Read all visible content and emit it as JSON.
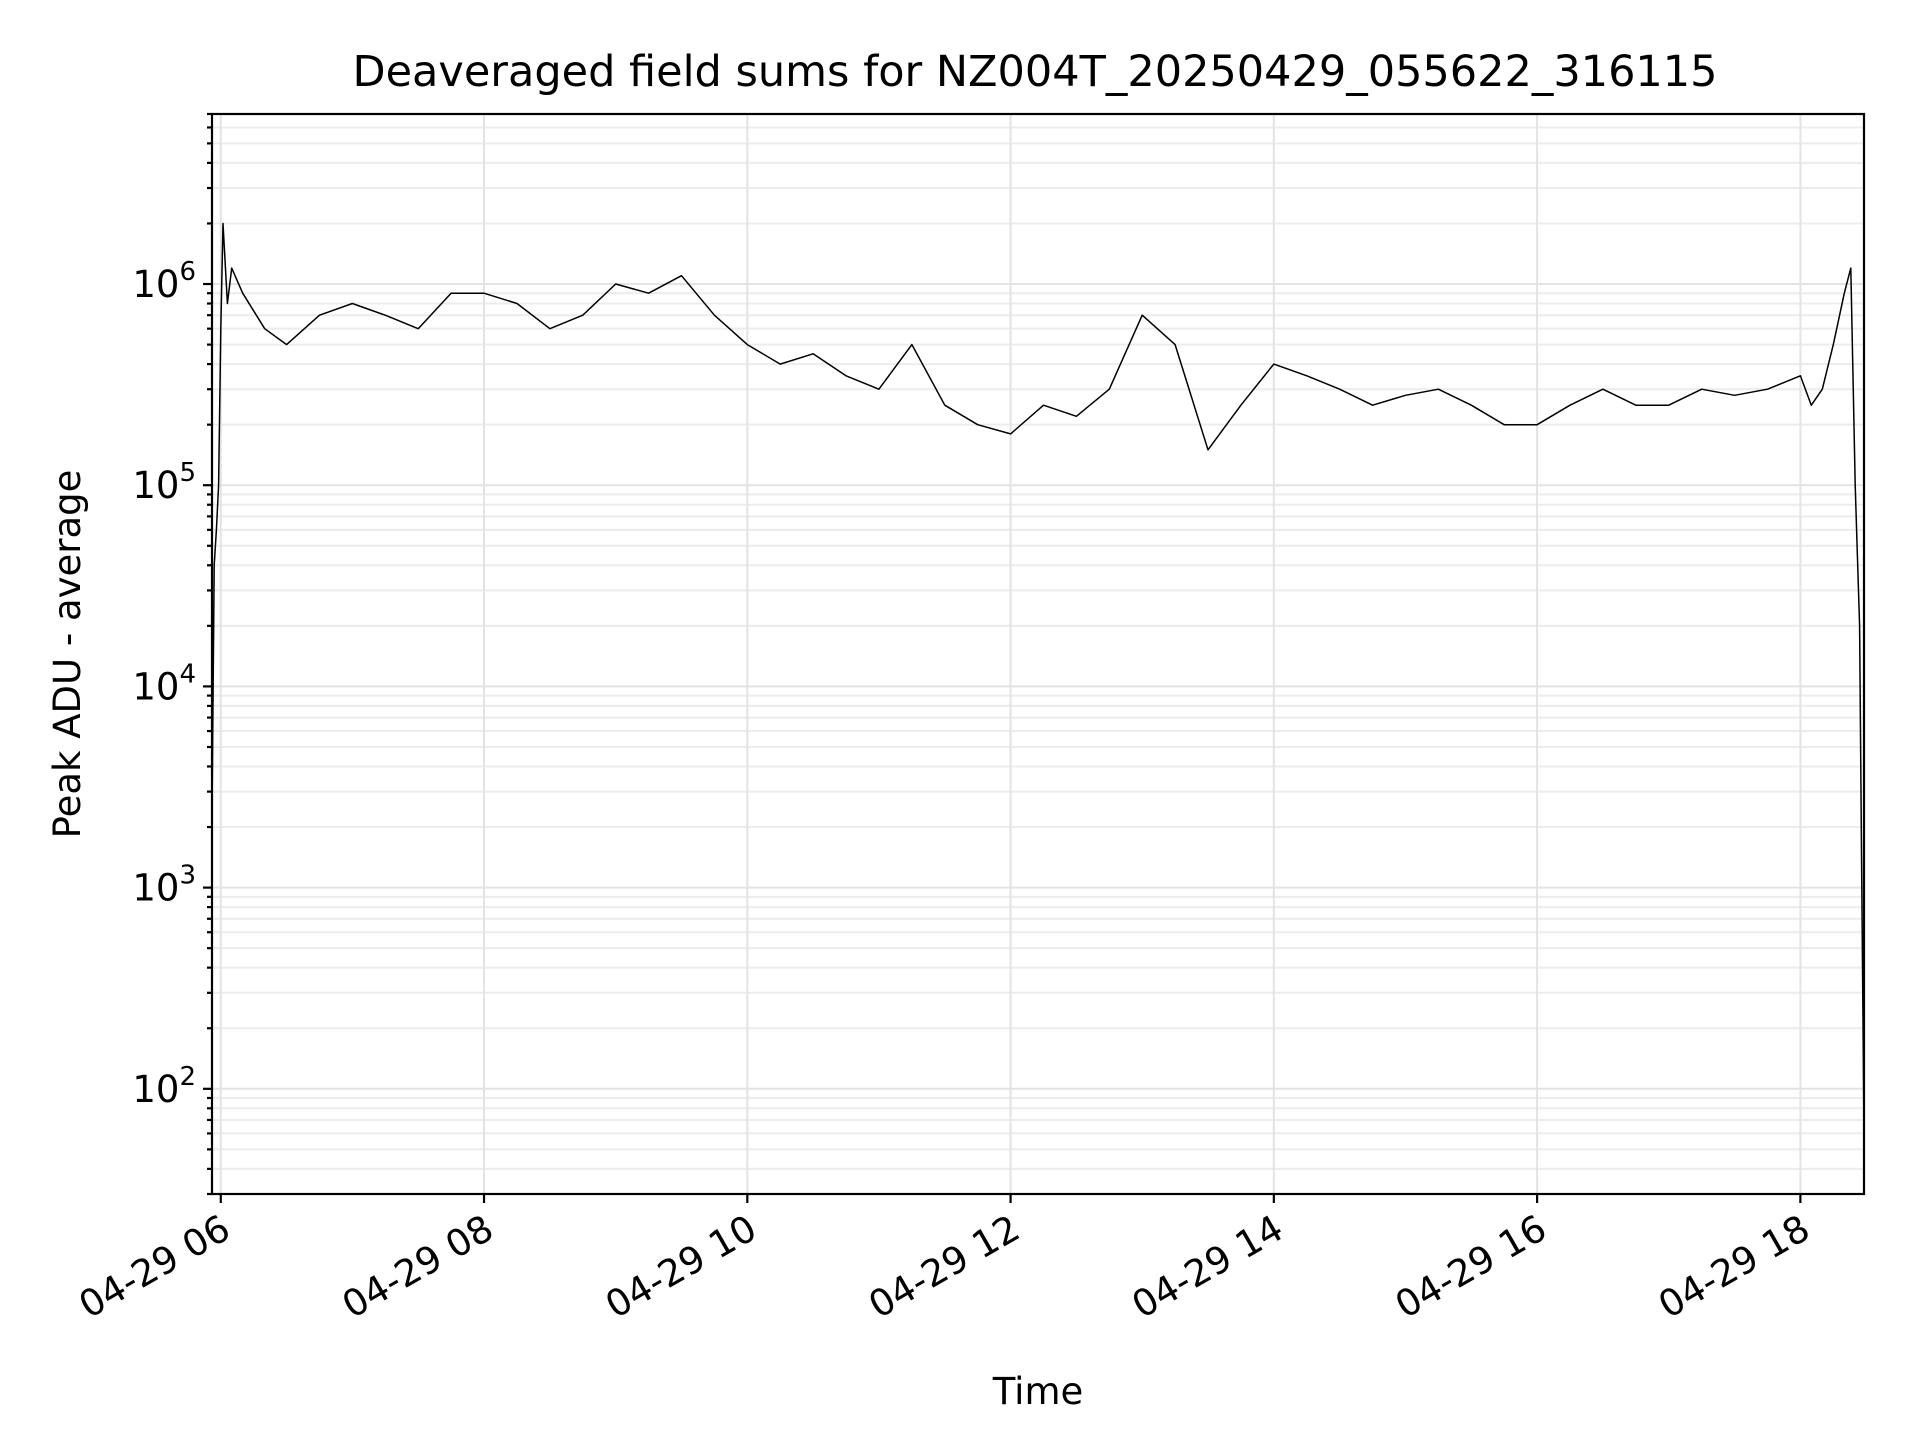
{
  "chart_data": {
    "type": "line",
    "title": "Deaveraged field sums for NZ004T_20250429_055622_316115",
    "xlabel": "Time",
    "ylabel": "Peak ADU - average",
    "yscale": "log",
    "ylim": [
      30,
      7000000
    ],
    "xlim": [
      "04-29 05:56",
      "04-29 18:29"
    ],
    "grid": true,
    "x_ticks": [
      {
        "value": "04-29 06:00",
        "label": "04-29 06"
      },
      {
        "value": "04-29 08:00",
        "label": "04-29 08"
      },
      {
        "value": "04-29 10:00",
        "label": "04-29 10"
      },
      {
        "value": "04-29 12:00",
        "label": "04-29 12"
      },
      {
        "value": "04-29 14:00",
        "label": "04-29 14"
      },
      {
        "value": "04-29 16:00",
        "label": "04-29 16"
      },
      {
        "value": "04-29 18:00",
        "label": "04-29 18"
      }
    ],
    "y_ticks": [
      {
        "value": 100,
        "base": "10",
        "exp": "2"
      },
      {
        "value": 1000,
        "base": "10",
        "exp": "3"
      },
      {
        "value": 10000,
        "base": "10",
        "exp": "4"
      },
      {
        "value": 100000,
        "base": "10",
        "exp": "5"
      },
      {
        "value": 1000000,
        "base": "10",
        "exp": "6"
      }
    ],
    "series": [
      {
        "color": "#000000",
        "x": [
          "04-29 05:56",
          "04-29 05:57",
          "04-29 05:58",
          "04-29 05:59",
          "04-29 06:00",
          "04-29 06:01",
          "04-29 06:03",
          "04-29 06:05",
          "04-29 06:10",
          "04-29 06:20",
          "04-29 06:30",
          "04-29 06:45",
          "04-29 07:00",
          "04-29 07:15",
          "04-29 07:30",
          "04-29 07:45",
          "04-29 08:00",
          "04-29 08:15",
          "04-29 08:30",
          "04-29 08:45",
          "04-29 09:00",
          "04-29 09:15",
          "04-29 09:30",
          "04-29 09:45",
          "04-29 10:00",
          "04-29 10:15",
          "04-29 10:30",
          "04-29 10:45",
          "04-29 11:00",
          "04-29 11:15",
          "04-29 11:30",
          "04-29 11:45",
          "04-29 12:00",
          "04-29 12:15",
          "04-29 12:30",
          "04-29 12:45",
          "04-29 13:00",
          "04-29 13:15",
          "04-29 13:30",
          "04-29 13:45",
          "04-29 14:00",
          "04-29 14:15",
          "04-29 14:30",
          "04-29 14:45",
          "04-29 15:00",
          "04-29 15:15",
          "04-29 15:30",
          "04-29 15:45",
          "04-29 16:00",
          "04-29 16:15",
          "04-29 16:30",
          "04-29 16:45",
          "04-29 17:00",
          "04-29 17:15",
          "04-29 17:30",
          "04-29 17:45",
          "04-29 18:00",
          "04-29 18:05",
          "04-29 18:10",
          "04-29 18:15",
          "04-29 18:20",
          "04-29 18:23",
          "04-29 18:25",
          "04-29 18:27",
          "04-29 18:28",
          "04-29 18:29"
        ],
        "y": [
          2200,
          40000,
          60000,
          100000,
          600000,
          2000000,
          800000,
          1200000,
          900000,
          600000,
          500000,
          700000,
          800000,
          700000,
          600000,
          900000,
          900000,
          800000,
          600000,
          700000,
          1000000,
          900000,
          1100000,
          700000,
          500000,
          400000,
          450000,
          350000,
          300000,
          500000,
          250000,
          200000,
          180000,
          250000,
          220000,
          300000,
          700000,
          500000,
          150000,
          250000,
          400000,
          350000,
          300000,
          250000,
          280000,
          300000,
          250000,
          200000,
          200000,
          250000,
          300000,
          250000,
          250000,
          300000,
          280000,
          300000,
          350000,
          250000,
          300000,
          500000,
          900000,
          1200000,
          100000,
          20000,
          1000,
          60
        ]
      }
    ]
  }
}
